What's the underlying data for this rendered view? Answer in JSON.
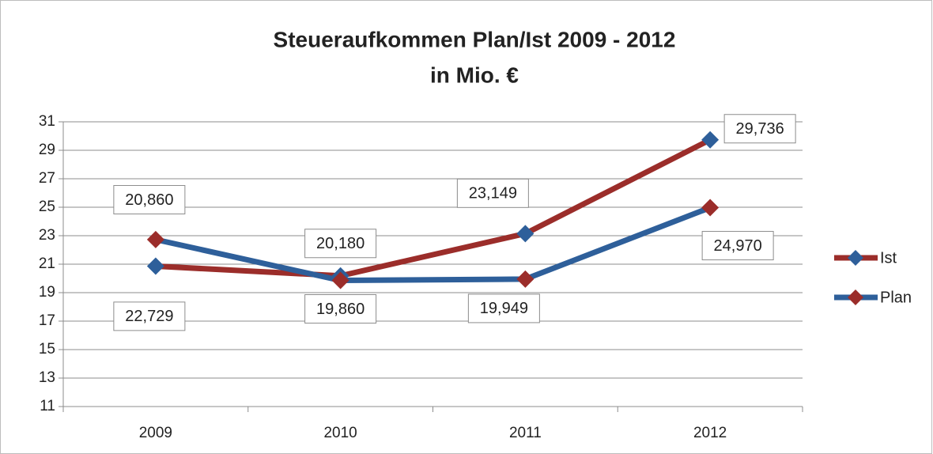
{
  "chart_data": {
    "type": "line",
    "title_lines": [
      "Steueraufkommen Plan/Ist 2009 - 2012",
      "in Mio. €"
    ],
    "categories": [
      "2009",
      "2010",
      "2011",
      "2012"
    ],
    "series": [
      {
        "name": "Ist",
        "color": "#9b2d2a",
        "marker_color": "#2e5f9a",
        "values": [
          20.86,
          20.18,
          23.149,
          29.736
        ],
        "value_labels": [
          "20,860",
          "20,180",
          "23,149",
          "29,736"
        ]
      },
      {
        "name": "Plan",
        "color": "#2e5f9a",
        "marker_color": "#9b2d2a",
        "values": [
          22.729,
          19.86,
          19.949,
          24.97
        ],
        "value_labels": [
          "22,729",
          "19,860",
          "19,949",
          "24,970"
        ]
      }
    ],
    "ylim": [
      11,
      31
    ],
    "yticks": [
      11,
      13,
      15,
      17,
      19,
      21,
      23,
      25,
      27,
      29,
      31
    ],
    "grid": true,
    "legend": "right"
  }
}
